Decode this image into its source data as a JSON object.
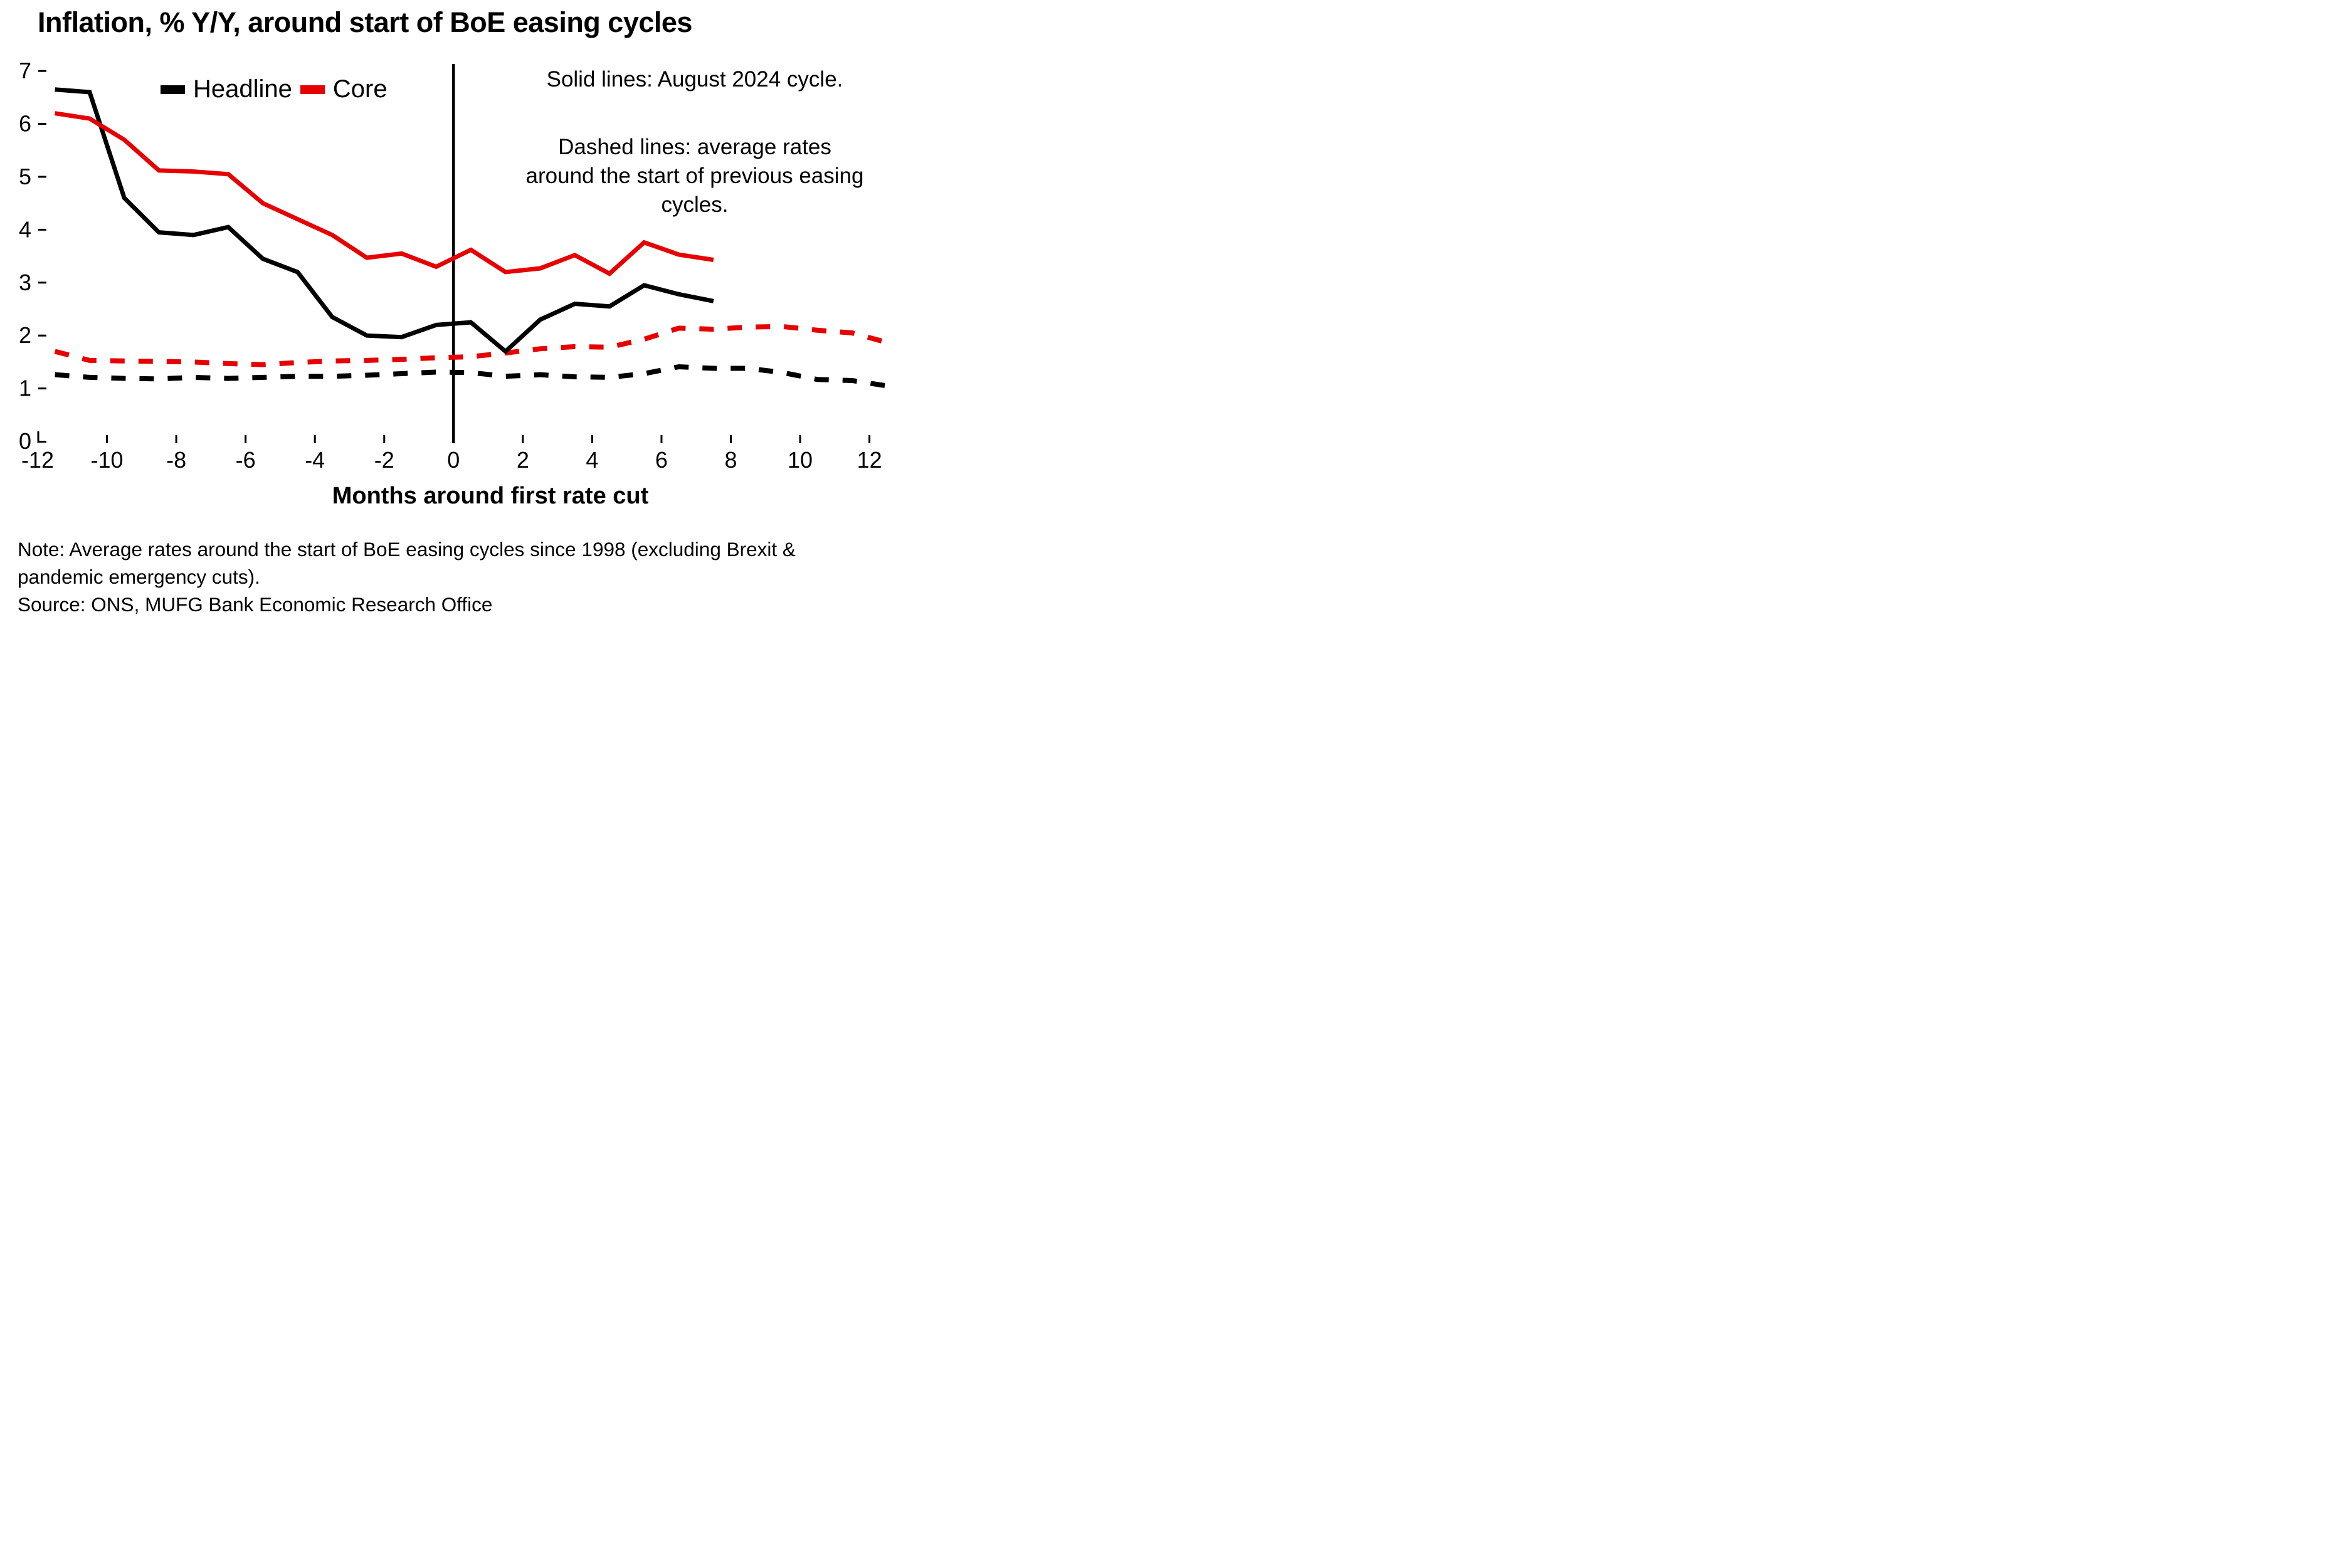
{
  "title": "Inflation, % Y/Y, around start of BoE easing cycles",
  "legend": {
    "items": [
      {
        "label": "Headline",
        "color": "#000000"
      },
      {
        "label": "Core",
        "color": "#e60000"
      }
    ]
  },
  "annotations": {
    "solid": "Solid lines: August 2024 cycle.",
    "dashed_line1": "Dashed lines: average rates",
    "dashed_line2": "around the start of previous easing",
    "dashed_line3": "cycles."
  },
  "notes": {
    "line1": "Note: Average rates around the start of BoE easing cycles since 1998 (excluding Brexit &",
    "line2": "pandemic emergency cuts).",
    "source": "Source: ONS, MUFG Bank Economic Research Office"
  },
  "chart_data": {
    "type": "line",
    "title": "Inflation, % Y/Y, around start of BoE easing cycles",
    "xlabel": "Months around first rate cut",
    "ylabel": "",
    "xlim": [
      -12,
      12.8
    ],
    "ylim": [
      0,
      7.2
    ],
    "x_ticks": [
      -12,
      -10,
      -8,
      -6,
      -4,
      -2,
      0,
      2,
      4,
      6,
      8,
      10,
      12
    ],
    "y_ticks": [
      0,
      1,
      2,
      3,
      4,
      5,
      6,
      7
    ],
    "grid": false,
    "zero_reference_line_x": 0,
    "legend_position": "upper-left-inside",
    "series": [
      {
        "name": "Headline average previous cycles",
        "color": "#000000",
        "style": "dashed",
        "x": [
          -11.5,
          -10.5,
          -9.5,
          -8.5,
          -7.5,
          -6.5,
          -5.5,
          -4.5,
          -3.5,
          -2.5,
          -1.5,
          -0.5,
          0.5,
          1.5,
          2.5,
          3.5,
          4.5,
          5.5,
          6.5,
          7.5,
          8.5,
          9.5,
          10.5,
          11.5,
          12.5
        ],
        "values": [
          1.26,
          1.21,
          1.19,
          1.18,
          1.21,
          1.19,
          1.21,
          1.23,
          1.23,
          1.25,
          1.28,
          1.31,
          1.3,
          1.23,
          1.26,
          1.22,
          1.21,
          1.28,
          1.41,
          1.38,
          1.38,
          1.3,
          1.17,
          1.15,
          1.05
        ]
      },
      {
        "name": "Core average previous cycles",
        "color": "#e60000",
        "style": "dashed",
        "x": [
          -11.5,
          -10.5,
          -9.5,
          -8.5,
          -7.5,
          -6.5,
          -5.5,
          -4.5,
          -3.5,
          -2.5,
          -1.5,
          -0.5,
          0.5,
          1.5,
          2.5,
          3.5,
          4.5,
          5.5,
          6.5,
          7.5,
          8.5,
          9.5,
          10.5,
          11.5,
          12.5
        ],
        "values": [
          1.7,
          1.53,
          1.52,
          1.51,
          1.5,
          1.47,
          1.45,
          1.49,
          1.52,
          1.53,
          1.55,
          1.58,
          1.6,
          1.67,
          1.75,
          1.79,
          1.78,
          1.93,
          2.14,
          2.12,
          2.16,
          2.17,
          2.1,
          2.05,
          1.87
        ]
      },
      {
        "name": "Headline August 2024 cycle",
        "color": "#000000",
        "style": "solid",
        "x": [
          -11.5,
          -10.5,
          -9.5,
          -8.5,
          -7.5,
          -6.5,
          -5.5,
          -4.5,
          -3.5,
          -2.5,
          -1.5,
          -0.5,
          0.5,
          1.5,
          2.5,
          3.5,
          4.5,
          5.5,
          6.5,
          7.5
        ],
        "values": [
          6.65,
          6.6,
          4.6,
          3.95,
          3.9,
          4.05,
          3.45,
          3.2,
          2.35,
          2.0,
          1.97,
          2.2,
          2.25,
          1.7,
          2.3,
          2.6,
          2.55,
          2.95,
          2.78,
          2.65
        ]
      },
      {
        "name": "Core August 2024 cycle",
        "color": "#e60000",
        "style": "solid",
        "x": [
          -11.5,
          -10.5,
          -9.5,
          -8.5,
          -7.5,
          -6.5,
          -5.5,
          -4.5,
          -3.5,
          -2.5,
          -1.5,
          -0.5,
          0.5,
          1.5,
          2.5,
          3.5,
          4.5,
          5.5,
          6.5,
          7.5
        ],
        "values": [
          6.2,
          6.1,
          5.7,
          5.12,
          5.1,
          5.05,
          4.5,
          4.2,
          3.9,
          3.47,
          3.55,
          3.3,
          3.62,
          3.2,
          3.27,
          3.52,
          3.17,
          3.76,
          3.53,
          3.43
        ]
      }
    ]
  }
}
